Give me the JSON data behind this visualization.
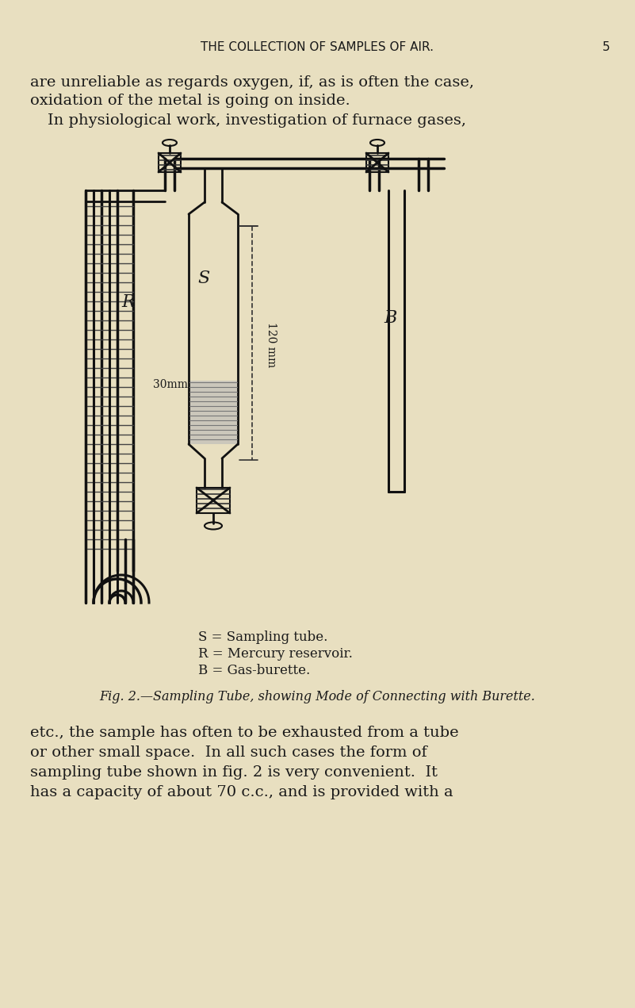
{
  "bg_color": "#e8dfc0",
  "page_width": 8.01,
  "page_height": 12.71,
  "header_text": "THE COLLECTION OF SAMPLES OF AIR.",
  "header_page": "5",
  "para1_line1": "are unreliable as regards oxygen, if, as is often the case,",
  "para1_line2": "oxidation of the metal is going on inside.",
  "para1_line3": "In physiological work, investigation of furnace gases,",
  "legend_line1": "S = Sampling tube.",
  "legend_line2": "R = Mercury reservoir.",
  "legend_line3": "B = Gas-burette.",
  "fig_caption": "Fig. 2.—Sampling Tube, showing Mode of Connecting with Burette.",
  "para2_line1": "etc., the sample has often to be exhausted from a tube",
  "para2_line2": "or other small space.  In all such cases the form of",
  "para2_line3": "sampling tube shown in fig. 2 is very convenient.  It",
  "para2_line4": "has a capacity of about 70 c.c., and is provided with a",
  "text_color": "#1a1a1a",
  "label_S": "S",
  "label_R": "R",
  "label_B": "B",
  "label_30mm": "30mm",
  "label_120mm": "120 mm"
}
